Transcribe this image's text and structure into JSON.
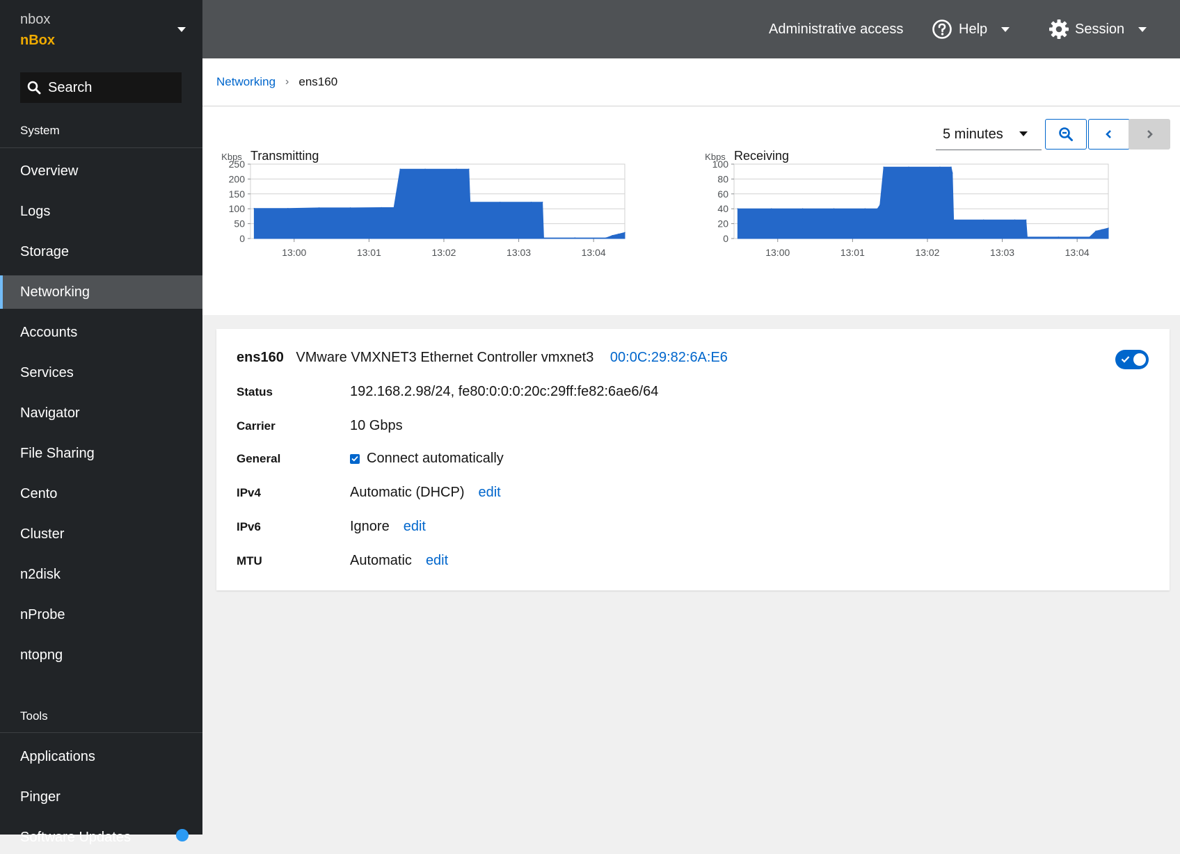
{
  "host": {
    "user": "nbox",
    "name": "nBox"
  },
  "search": {
    "label": "Search"
  },
  "sidebar": {
    "system_header": "System",
    "system_items": [
      {
        "label": "Overview"
      },
      {
        "label": "Logs"
      },
      {
        "label": "Storage"
      },
      {
        "label": "Networking",
        "active": true
      },
      {
        "label": "Accounts"
      },
      {
        "label": "Services"
      },
      {
        "label": "Navigator"
      },
      {
        "label": "File Sharing"
      },
      {
        "label": "Cento"
      },
      {
        "label": "Cluster"
      },
      {
        "label": "n2disk"
      },
      {
        "label": "nProbe"
      },
      {
        "label": "ntopng"
      }
    ],
    "tools_header": "Tools",
    "tools_items": [
      {
        "label": "Applications"
      },
      {
        "label": "Pinger"
      },
      {
        "label": "Software Updates"
      }
    ]
  },
  "topbar": {
    "admin": "Administrative access",
    "help": "Help",
    "session": "Session"
  },
  "breadcrumb": {
    "parent": "Networking",
    "current": "ens160"
  },
  "graph_controls": {
    "range": "5 minutes",
    "zoom_icon": "zoom-out-icon",
    "prev_icon": "chevron-left-icon",
    "next_icon": "chevron-right-icon"
  },
  "chart_data": [
    {
      "type": "area",
      "title": "Transmitting",
      "ylabel": "Kbps",
      "ylim": [
        0,
        250
      ],
      "yticks": [
        "250",
        "200",
        "150",
        "100",
        "50",
        "0"
      ],
      "xticks": [
        "13:00",
        "13:01",
        "13:02",
        "13:03",
        "13:04"
      ],
      "color": "#2468c9",
      "x": [
        "12:59:28",
        "12:59:55",
        "13:00:20",
        "13:00:45",
        "13:01:10",
        "13:01:20",
        "13:01:25",
        "13:01:45",
        "13:02:10",
        "13:02:20",
        "13:02:21",
        "13:02:45",
        "13:03:10",
        "13:03:19",
        "13:03:20",
        "13:03:45",
        "13:04:10",
        "13:04:15",
        "13:04:20",
        "13:04:25"
      ],
      "y": [
        101,
        101,
        103,
        103,
        104,
        104,
        233,
        233,
        233,
        233,
        122,
        122,
        122,
        122,
        2,
        2,
        2,
        10,
        15,
        20
      ]
    },
    {
      "type": "area",
      "title": "Receiving",
      "ylabel": "Kbps",
      "ylim": [
        0,
        100
      ],
      "yticks": [
        "100",
        "80",
        "60",
        "40",
        "20",
        "0"
      ],
      "xticks": [
        "13:00",
        "13:01",
        "13:02",
        "13:03",
        "13:04"
      ],
      "color": "#2468c9",
      "x": [
        "12:59:28",
        "12:59:55",
        "13:00:20",
        "13:00:45",
        "13:01:10",
        "13:01:20",
        "13:01:22",
        "13:01:25",
        "13:01:45",
        "13:02:10",
        "13:02:19",
        "13:02:20",
        "13:02:21",
        "13:02:45",
        "13:03:10",
        "13:03:19",
        "13:03:20",
        "13:03:45",
        "13:04:10",
        "13:04:15",
        "13:04:20",
        "13:04:25"
      ],
      "y": [
        40,
        40,
        40,
        40,
        40,
        40,
        45,
        96,
        96,
        96,
        96,
        88,
        25,
        25,
        25,
        25,
        2,
        2,
        2,
        10,
        12,
        14
      ]
    }
  ],
  "interface": {
    "name": "ens160",
    "description": "VMware VMXNET3 Ethernet Controller vmxnet3",
    "mac": "00:0C:29:82:6A:E6",
    "enabled": true,
    "status_label": "Status",
    "status_value": "192.168.2.98/24, fe80:0:0:0:20c:29ff:fe82:6ae6/64",
    "carrier_label": "Carrier",
    "carrier_value": "10 Gbps",
    "general_label": "General",
    "general_value": "Connect automatically",
    "ipv4_label": "IPv4",
    "ipv4_value": "Automatic (DHCP)",
    "ipv6_label": "IPv6",
    "ipv6_value": "Ignore",
    "mtu_label": "MTU",
    "mtu_value": "Automatic",
    "edit_label": "edit"
  },
  "colors": {
    "accent": "#0066cc",
    "brand": "#f0ab00",
    "sidebar": "#212427",
    "topbar": "#4f5255",
    "chart_fill": "#2468c9"
  }
}
